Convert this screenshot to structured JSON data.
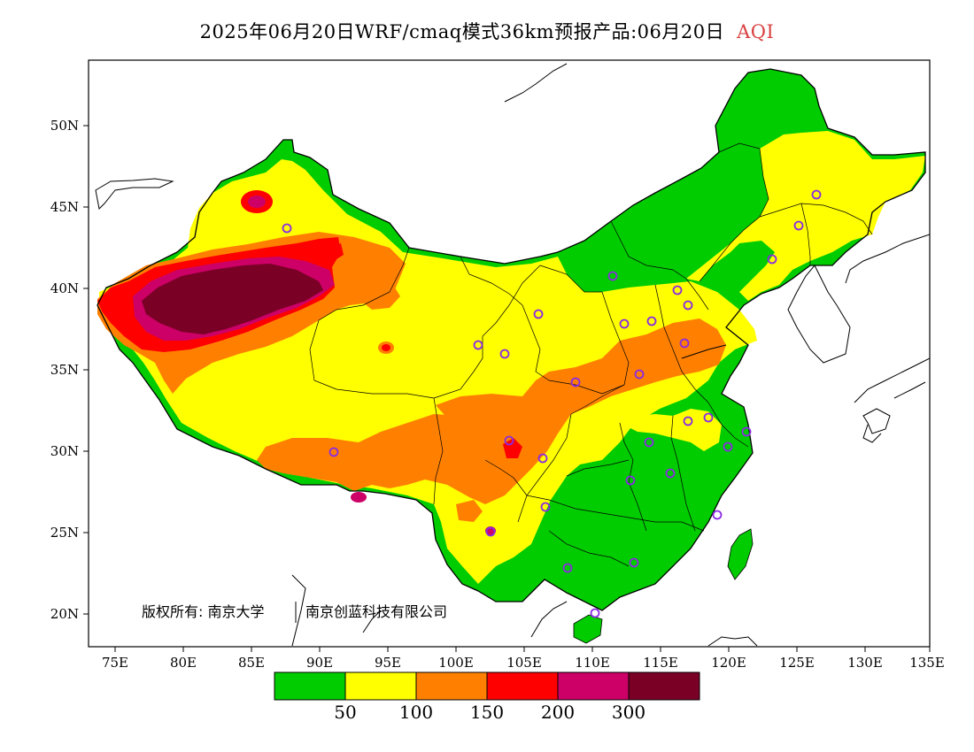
{
  "title": {
    "main": "2025年06月20日WRF/cmaq模式36km预报产品:06月20日",
    "variable": "AQI",
    "variable_color": "#d94040"
  },
  "axes": {
    "lat_labels": [
      "20N",
      "25N",
      "30N",
      "35N",
      "40N",
      "45N",
      "50N"
    ],
    "lon_labels": [
      "75E",
      "80E",
      "85E",
      "90E",
      "95E",
      "100E",
      "105E",
      "110E",
      "115E",
      "120E",
      "125E",
      "130E",
      "135E"
    ]
  },
  "copyright": {
    "part1": "版权所有: 南京大学",
    "part2": "南京创蓝科技有限公司"
  },
  "colorbar": {
    "colors": [
      "#00cc00",
      "#ffff00",
      "#ff8000",
      "#ff0000",
      "#cc0066",
      "#7a0026"
    ],
    "labels": [
      "50",
      "100",
      "150",
      "200",
      "300"
    ]
  },
  "stations": {
    "color": "#8a2be2"
  }
}
